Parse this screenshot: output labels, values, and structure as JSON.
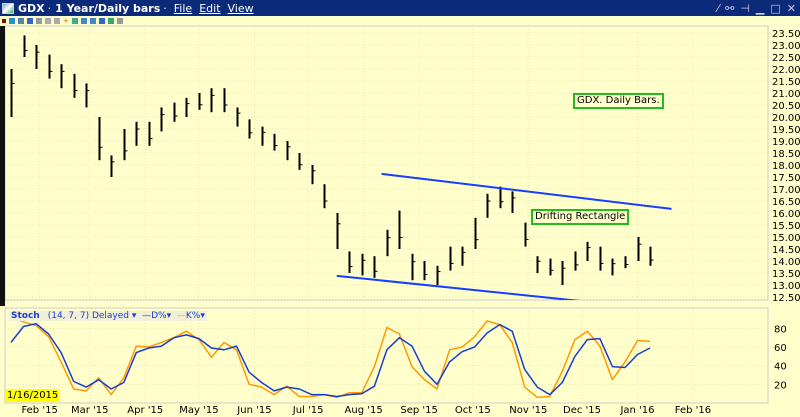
{
  "window": {
    "symbol": "GDX",
    "title": "1 Year/Daily bars",
    "menus": [
      "File",
      "Edit",
      "View"
    ],
    "controls": [
      "wrench-icon",
      "link-icon",
      "pin-icon",
      "minimize-icon",
      "maximize-icon",
      "close-icon"
    ]
  },
  "toolbar_icons": [
    "close-icon",
    "select-icon",
    "bar-chart-icon",
    "area-chart-icon",
    "draw-icon",
    "zoom-in-icon",
    "zoom-out-icon",
    "crosshair-icon",
    "indicator-icon",
    "scroll-left-icon",
    "scroll-right-icon",
    "center-icon",
    "split-icon",
    "tools-icon"
  ],
  "annotations": {
    "title_note": "GDX. Daily Bars.",
    "pattern_note": "Drifting Rectangle"
  },
  "colors": {
    "background": "#ffffcc",
    "titlebar": "#0c2a7a",
    "bars": "#000000",
    "trendline": "#1a3cff",
    "d_line": "#1a3ccf",
    "k_line": "#ff9900",
    "note_border": "#22bb22"
  },
  "stoch_legend": {
    "name": "Stoch",
    "params": "(14, 7, 7) Delayed",
    "d_label": "D%",
    "k_label": "K%"
  },
  "cursor_date": "1/16/2015",
  "chart_data": [
    {
      "type": "bar",
      "subtype": "ohlc-daily",
      "title": "",
      "x_ticks": [
        "Feb '15",
        "Mar '15",
        "Apr '15",
        "May '15",
        "Jun '15",
        "Jul '15",
        "Aug '15",
        "Sep '15",
        "Oct '15",
        "Nov '15",
        "Dec '15",
        "Jan '16",
        "Feb '16"
      ],
      "x_tick_dates": [
        "2015-02-01",
        "2015-03-01",
        "2015-04-01",
        "2015-05-01",
        "2015-06-01",
        "2015-07-01",
        "2015-08-01",
        "2015-09-01",
        "2015-10-01",
        "2015-11-01",
        "2015-12-01",
        "2016-01-01",
        "2016-02-01"
      ],
      "xlim": [
        "2015-01-16",
        "2016-02-29"
      ],
      "ylim": [
        12.5,
        23.5
      ],
      "y_ticks": [
        "23.50",
        "23.00",
        "22.50",
        "22.00",
        "21.50",
        "21.00",
        "20.50",
        "20.00",
        "19.50",
        "19.00",
        "18.50",
        "18.00",
        "17.50",
        "17.00",
        "16.50",
        "16.00",
        "15.50",
        "15.00",
        "14.50",
        "14.00",
        "13.50",
        "13.00",
        "12.50"
      ],
      "grid": true,
      "start_date": "2015-01-16",
      "interval_days": 7,
      "low": [
        20.0,
        22.5,
        22.0,
        21.6,
        21.2,
        20.8,
        20.4,
        18.2,
        17.5,
        18.2,
        18.8,
        18.8,
        19.4,
        19.8,
        20.0,
        20.3,
        20.2,
        20.2,
        19.6,
        19.1,
        18.8,
        18.6,
        18.2,
        17.8,
        17.2,
        16.2,
        14.5,
        13.5,
        13.4,
        13.3,
        14.2,
        14.5,
        13.2,
        13.2,
        13.0,
        13.6,
        13.8,
        14.5,
        15.8,
        16.2,
        16.0,
        14.6,
        13.5,
        13.4,
        13.0,
        13.6,
        14.0,
        13.6,
        13.4,
        13.7,
        14.0,
        13.8
      ],
      "high": [
        22.0,
        23.4,
        23.0,
        22.6,
        22.2,
        21.8,
        21.4,
        20.0,
        18.4,
        19.5,
        19.8,
        19.8,
        20.4,
        20.6,
        20.8,
        21.0,
        21.2,
        21.2,
        20.4,
        19.9,
        19.6,
        19.3,
        19.0,
        18.5,
        18.0,
        17.2,
        16.0,
        14.4,
        14.3,
        14.2,
        15.3,
        16.1,
        14.3,
        14.0,
        13.8,
        14.6,
        14.6,
        15.8,
        16.8,
        17.1,
        16.9,
        15.6,
        14.2,
        14.1,
        14.0,
        14.4,
        14.8,
        14.6,
        14.1,
        14.2,
        15.0,
        14.6
      ],
      "trendlines": [
        {
          "from": [
            "2015-08-11",
            17.63
          ],
          "to": [
            "2016-01-20",
            16.17
          ]
        },
        {
          "from": [
            "2015-07-17",
            13.38
          ],
          "to": [
            "2016-01-02",
            12.08
          ]
        }
      ]
    },
    {
      "type": "line",
      "title": "Stoch (14, 7, 7)",
      "ylim": [
        0,
        100
      ],
      "y_ticks": [
        "80",
        "60",
        "40",
        "20"
      ],
      "start_date": "2015-01-16",
      "interval_days": 7,
      "series": [
        {
          "name": "D%",
          "values": [
            65,
            82,
            85,
            74,
            54,
            23,
            17,
            25,
            15,
            22,
            54,
            59,
            61,
            70,
            73,
            69,
            59,
            57,
            61,
            33,
            22,
            13,
            17,
            15,
            9,
            9,
            7,
            9,
            10,
            18,
            57,
            70,
            61,
            34,
            20,
            44,
            55,
            60,
            75,
            84,
            77,
            36,
            17,
            9,
            22,
            50,
            68,
            69,
            39,
            38,
            52,
            59
          ]
        },
        {
          "name": "K%",
          "values": [
            92,
            87,
            83,
            71,
            44,
            15,
            13,
            27,
            9,
            27,
            61,
            60,
            65,
            70,
            77,
            68,
            49,
            65,
            57,
            20,
            17,
            9,
            18,
            7,
            7,
            9,
            6,
            11,
            11,
            39,
            81,
            74,
            39,
            25,
            15,
            57,
            60,
            71,
            88,
            84,
            65,
            17,
            6,
            7,
            34,
            68,
            77,
            61,
            25,
            44,
            67,
            66
          ]
        }
      ]
    }
  ]
}
